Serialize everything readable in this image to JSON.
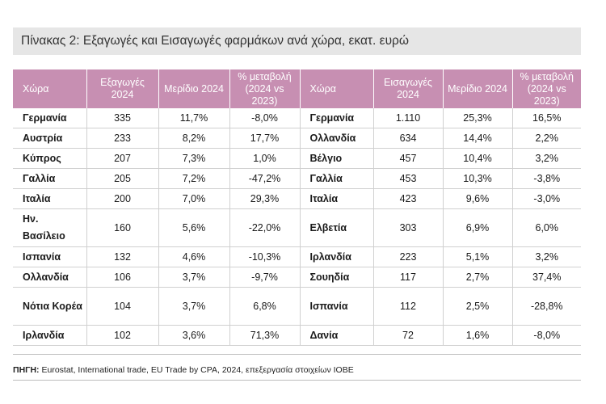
{
  "title": "Πίνακας 2: Εξαγωγές και Εισαγωγές φαρμάκων ανά χώρα, εκατ. ευρώ",
  "headers": {
    "exp_country": "Χώρα",
    "exp_value": "Εξαγωγές 2024",
    "exp_share": "Μερίδιο 2024",
    "exp_change": "% μεταβολή (2024 vs 2023)",
    "imp_country": "Χώρα",
    "imp_value": "Εισαγωγές 2024",
    "imp_share": "Μερίδιο 2024",
    "imp_change": "% μεταβολή (2024 vs 2023)"
  },
  "rows": [
    {
      "exp_country": "Γερμανία",
      "exp_value": "335",
      "exp_share": "11,7%",
      "exp_change": "-8,0%",
      "imp_country": "Γερμανία",
      "imp_value": "1.110",
      "imp_share": "25,3%",
      "imp_change": "16,5%"
    },
    {
      "exp_country": "Αυστρία",
      "exp_value": "233",
      "exp_share": "8,2%",
      "exp_change": "17,7%",
      "imp_country": "Ολλανδία",
      "imp_value": "634",
      "imp_share": "14,4%",
      "imp_change": "2,2%"
    },
    {
      "exp_country": "Κύπρος",
      "exp_value": "207",
      "exp_share": "7,3%",
      "exp_change": "1,0%",
      "imp_country": "Βέλγιο",
      "imp_value": "457",
      "imp_share": "10,4%",
      "imp_change": "3,2%"
    },
    {
      "exp_country": "Γαλλία",
      "exp_value": "205",
      "exp_share": "7,2%",
      "exp_change": "-47,2%",
      "imp_country": "Γαλλία",
      "imp_value": "453",
      "imp_share": "10,3%",
      "imp_change": "-3,8%"
    },
    {
      "exp_country": "Ιταλία",
      "exp_value": "200",
      "exp_share": "7,0%",
      "exp_change": "29,3%",
      "imp_country": "Ιταλία",
      "imp_value": "423",
      "imp_share": "9,6%",
      "imp_change": "-3,0%"
    },
    {
      "exp_country": "Ην. Βασίλειο",
      "exp_value": "160",
      "exp_share": "5,6%",
      "exp_change": "-22,0%",
      "imp_country": "Ελβετία",
      "imp_value": "303",
      "imp_share": "6,9%",
      "imp_change": "6,0%"
    },
    {
      "exp_country": "Ισπανία",
      "exp_value": "132",
      "exp_share": "4,6%",
      "exp_change": "-10,3%",
      "imp_country": "Ιρλανδία",
      "imp_value": "223",
      "imp_share": "5,1%",
      "imp_change": "3,2%"
    },
    {
      "exp_country": "Ολλανδία",
      "exp_value": "106",
      "exp_share": "3,7%",
      "exp_change": "-9,7%",
      "imp_country": "Σουηδία",
      "imp_value": "117",
      "imp_share": "2,7%",
      "imp_change": "37,4%"
    },
    {
      "exp_country": "Νότια Κορέα",
      "exp_value": "104",
      "exp_share": "3,7%",
      "exp_change": "6,8%",
      "imp_country": "Ισπανία",
      "imp_value": "112",
      "imp_share": "2,5%",
      "imp_change": "-28,8%"
    },
    {
      "exp_country": "Ιρλανδία",
      "exp_value": "102",
      "exp_share": "3,6%",
      "exp_change": "71,3%",
      "imp_country": "Δανία",
      "imp_value": "72",
      "imp_share": "1,6%",
      "imp_change": "-8,0%"
    }
  ],
  "source": {
    "label": "ΠΗΓΗ:",
    "text": " Eurostat, International trade, EU Trade by CPA, 2024, επεξεργασία στοιχείων ΙΟΒΕ"
  }
}
